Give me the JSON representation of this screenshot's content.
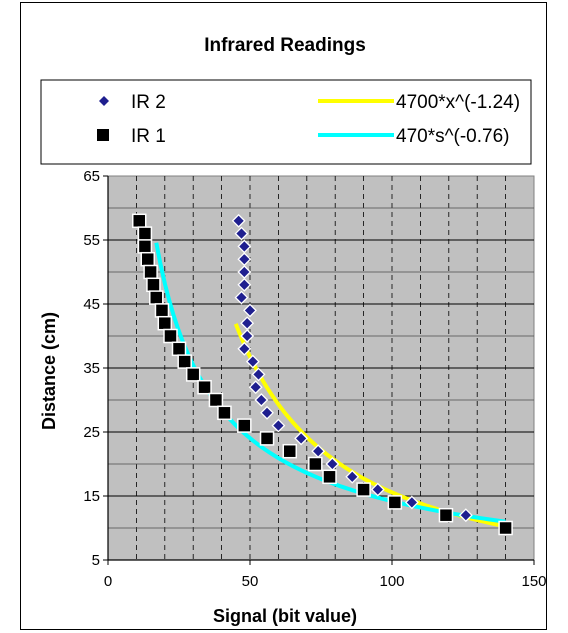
{
  "chart_data": {
    "type": "scatter",
    "title": "Infrared Readings",
    "xlabel": "Signal (bit value)",
    "ylabel": "Distance (cm)",
    "xlim": [
      0,
      150
    ],
    "ylim": [
      5,
      65
    ],
    "x_ticks": [
      "0",
      "50",
      "100",
      "150"
    ],
    "y_ticks": [
      "5",
      "15",
      "25",
      "35",
      "45",
      "55",
      "65"
    ],
    "grid": true,
    "legend_position": "top",
    "series": [
      {
        "name": "IR 2",
        "marker": "diamond",
        "color": "#1f1f8f",
        "points": [
          [
            46,
            58
          ],
          [
            47,
            56
          ],
          [
            48,
            54
          ],
          [
            48,
            52
          ],
          [
            48,
            50
          ],
          [
            48,
            48
          ],
          [
            47,
            46
          ],
          [
            50,
            44
          ],
          [
            49,
            42
          ],
          [
            49,
            40
          ],
          [
            48,
            38
          ],
          [
            51,
            36
          ],
          [
            53,
            34
          ],
          [
            52,
            32
          ],
          [
            54,
            30
          ],
          [
            56,
            28
          ],
          [
            60,
            26
          ],
          [
            68,
            24
          ],
          [
            74,
            22
          ],
          [
            79,
            20
          ],
          [
            86,
            18
          ],
          [
            95,
            16
          ],
          [
            107,
            14
          ],
          [
            126,
            12
          ],
          [
            140,
            10
          ]
        ]
      },
      {
        "name": "IR 1",
        "marker": "square",
        "color": "#000000",
        "points": [
          [
            11,
            58
          ],
          [
            13,
            56
          ],
          [
            13,
            54
          ],
          [
            14,
            52
          ],
          [
            15,
            50
          ],
          [
            16,
            48
          ],
          [
            17,
            46
          ],
          [
            19,
            44
          ],
          [
            20,
            42
          ],
          [
            22,
            40
          ],
          [
            25,
            38
          ],
          [
            27,
            36
          ],
          [
            30,
            34
          ],
          [
            34,
            32
          ],
          [
            38,
            30
          ],
          [
            41,
            28
          ],
          [
            48,
            26
          ],
          [
            56,
            24
          ],
          [
            64,
            22
          ],
          [
            73,
            20
          ],
          [
            78,
            18
          ],
          [
            90,
            16
          ],
          [
            101,
            14
          ],
          [
            119,
            12
          ],
          [
            140,
            10
          ]
        ]
      }
    ],
    "trendlines": [
      {
        "name": "4700*x^(-1.24)",
        "color": "#ffff00",
        "a": 4700,
        "b": -1.24,
        "x_range": [
          45,
          140
        ]
      },
      {
        "name": "470*s^(-0.76)",
        "color": "#00ffff",
        "a": 470,
        "b": -0.76,
        "x_range": [
          17,
          140
        ]
      }
    ]
  }
}
